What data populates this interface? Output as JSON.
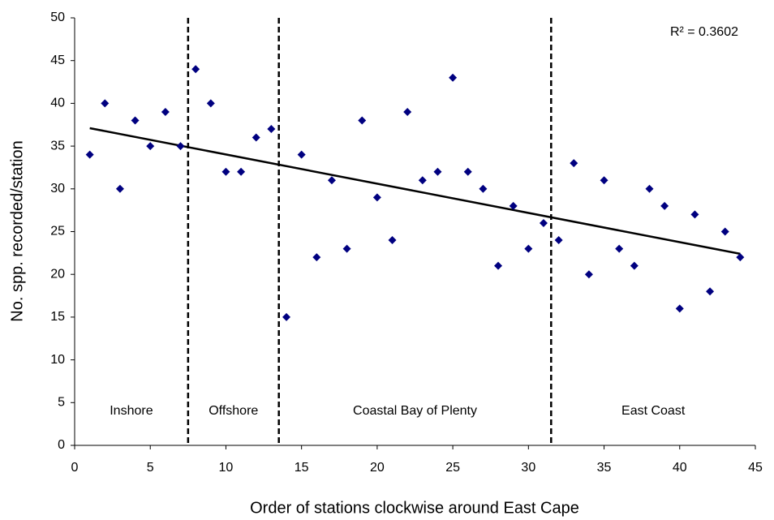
{
  "chart_data": {
    "type": "scatter",
    "xlabel": "Order of stations clockwise around East Cape",
    "ylabel": "No. spp. recorded/station",
    "annotation": "R² = 0.3602",
    "x": [
      1,
      2,
      3,
      4,
      5,
      6,
      7,
      8,
      9,
      10,
      11,
      12,
      13,
      14,
      15,
      16,
      17,
      18,
      19,
      20,
      21,
      22,
      23,
      24,
      25,
      26,
      27,
      28,
      29,
      30,
      31,
      32,
      33,
      34,
      35,
      36,
      37,
      38,
      39,
      40,
      41,
      42,
      43,
      44
    ],
    "values": [
      34,
      40,
      30,
      38,
      35,
      39,
      35,
      44,
      40,
      32,
      32,
      36,
      37,
      15,
      34,
      22,
      31,
      23,
      38,
      29,
      24,
      39,
      31,
      32,
      43,
      32,
      30,
      21,
      28,
      23,
      26,
      24,
      33,
      20,
      31,
      23,
      21,
      30,
      28,
      16,
      27,
      18,
      25,
      22
    ],
    "color": "#000080",
    "trendline": {
      "x": [
        1,
        44
      ],
      "y": [
        37.1,
        22.4
      ],
      "color": "#000000"
    },
    "dividers": [
      7.5,
      13.5,
      31.5
    ],
    "regions": [
      "Inshore",
      "Offshore",
      "Coastal Bay of Plenty",
      "East Coast"
    ],
    "xlim": [
      0,
      45
    ],
    "xticks": [
      0,
      5,
      10,
      15,
      20,
      25,
      30,
      35,
      40,
      45
    ],
    "ylim": [
      0,
      50
    ],
    "yticks": [
      0,
      5,
      10,
      15,
      20,
      25,
      30,
      35,
      40,
      45,
      50
    ],
    "grid": false
  }
}
